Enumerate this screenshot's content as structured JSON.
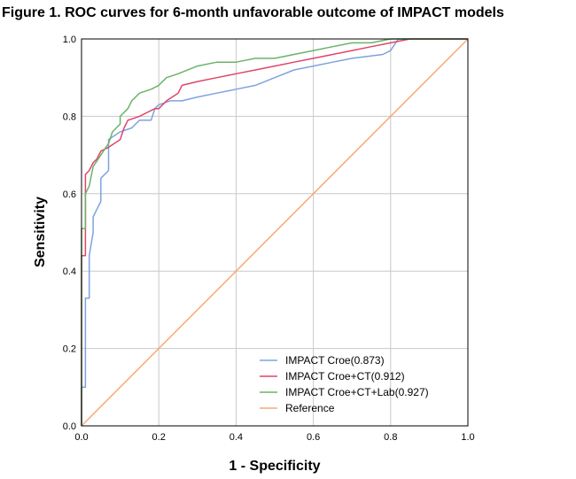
{
  "figure_title": "Figure 1. ROC curves for 6-month unfavorable outcome of IMPACT models",
  "chart_data": {
    "type": "line",
    "title": "Figure 1. ROC curves for 6-month unfavorable outcome of IMPACT models",
    "xlabel": "1 - Specificity",
    "ylabel": "Sensitivity",
    "xlim": [
      0,
      1
    ],
    "ylim": [
      0,
      1
    ],
    "x_ticks": [
      "0.0",
      "0.2",
      "0.4",
      "0.6",
      "0.8",
      "1.0"
    ],
    "y_ticks": [
      "0.0",
      "0.2",
      "0.4",
      "0.6",
      "0.8",
      "1.0"
    ],
    "grid": true,
    "legend_position": "bottom-right",
    "series": [
      {
        "name": "IMPACT Croe(0.873)",
        "color": "#7ea3e0",
        "points": [
          [
            0,
            0
          ],
          [
            0,
            0.1
          ],
          [
            0.01,
            0.1
          ],
          [
            0.01,
            0.33
          ],
          [
            0.02,
            0.33
          ],
          [
            0.02,
            0.44
          ],
          [
            0.03,
            0.5
          ],
          [
            0.03,
            0.54
          ],
          [
            0.04,
            0.56
          ],
          [
            0.05,
            0.58
          ],
          [
            0.05,
            0.64
          ],
          [
            0.07,
            0.66
          ],
          [
            0.07,
            0.74
          ],
          [
            0.1,
            0.76
          ],
          [
            0.13,
            0.77
          ],
          [
            0.14,
            0.78
          ],
          [
            0.15,
            0.79
          ],
          [
            0.18,
            0.79
          ],
          [
            0.19,
            0.82
          ],
          [
            0.2,
            0.83
          ],
          [
            0.23,
            0.84
          ],
          [
            0.26,
            0.84
          ],
          [
            0.3,
            0.85
          ],
          [
            0.35,
            0.86
          ],
          [
            0.4,
            0.87
          ],
          [
            0.45,
            0.88
          ],
          [
            0.5,
            0.9
          ],
          [
            0.55,
            0.92
          ],
          [
            0.6,
            0.93
          ],
          [
            0.65,
            0.94
          ],
          [
            0.7,
            0.95
          ],
          [
            0.78,
            0.96
          ],
          [
            0.8,
            0.97
          ],
          [
            0.82,
            1.0
          ],
          [
            1,
            1
          ]
        ]
      },
      {
        "name": "IMPACT Croe+CT(0.912)",
        "color": "#e0456a",
        "points": [
          [
            0,
            0
          ],
          [
            0,
            0.44
          ],
          [
            0.01,
            0.44
          ],
          [
            0.01,
            0.62
          ],
          [
            0.01,
            0.65
          ],
          [
            0.02,
            0.66
          ],
          [
            0.03,
            0.68
          ],
          [
            0.04,
            0.69
          ],
          [
            0.05,
            0.71
          ],
          [
            0.07,
            0.72
          ],
          [
            0.1,
            0.74
          ],
          [
            0.11,
            0.77
          ],
          [
            0.12,
            0.79
          ],
          [
            0.15,
            0.8
          ],
          [
            0.17,
            0.81
          ],
          [
            0.19,
            0.82
          ],
          [
            0.2,
            0.82
          ],
          [
            0.22,
            0.84
          ],
          [
            0.25,
            0.86
          ],
          [
            0.26,
            0.88
          ],
          [
            0.3,
            0.89
          ],
          [
            0.35,
            0.9
          ],
          [
            0.4,
            0.91
          ],
          [
            0.45,
            0.92
          ],
          [
            0.5,
            0.93
          ],
          [
            0.55,
            0.94
          ],
          [
            0.6,
            0.95
          ],
          [
            0.65,
            0.96
          ],
          [
            0.7,
            0.97
          ],
          [
            0.75,
            0.98
          ],
          [
            0.8,
            0.99
          ],
          [
            0.85,
            1.0
          ],
          [
            1,
            1
          ]
        ]
      },
      {
        "name": "IMPACT Croe+CT+Lab(0.927)",
        "color": "#6ab36a",
        "points": [
          [
            0,
            0
          ],
          [
            0,
            0.51
          ],
          [
            0.01,
            0.51
          ],
          [
            0.01,
            0.6
          ],
          [
            0.02,
            0.62
          ],
          [
            0.03,
            0.67
          ],
          [
            0.05,
            0.7
          ],
          [
            0.07,
            0.73
          ],
          [
            0.08,
            0.76
          ],
          [
            0.1,
            0.78
          ],
          [
            0.1,
            0.8
          ],
          [
            0.12,
            0.82
          ],
          [
            0.13,
            0.84
          ],
          [
            0.15,
            0.86
          ],
          [
            0.18,
            0.87
          ],
          [
            0.2,
            0.88
          ],
          [
            0.22,
            0.9
          ],
          [
            0.25,
            0.91
          ],
          [
            0.3,
            0.93
          ],
          [
            0.35,
            0.94
          ],
          [
            0.4,
            0.94
          ],
          [
            0.45,
            0.95
          ],
          [
            0.5,
            0.95
          ],
          [
            0.55,
            0.96
          ],
          [
            0.6,
            0.97
          ],
          [
            0.65,
            0.98
          ],
          [
            0.7,
            0.99
          ],
          [
            0.75,
            0.99
          ],
          [
            0.8,
            1.0
          ],
          [
            1,
            1
          ]
        ]
      },
      {
        "name": "Reference",
        "color": "#f5a97a",
        "points": [
          [
            0,
            0
          ],
          [
            1,
            1
          ]
        ]
      }
    ]
  }
}
